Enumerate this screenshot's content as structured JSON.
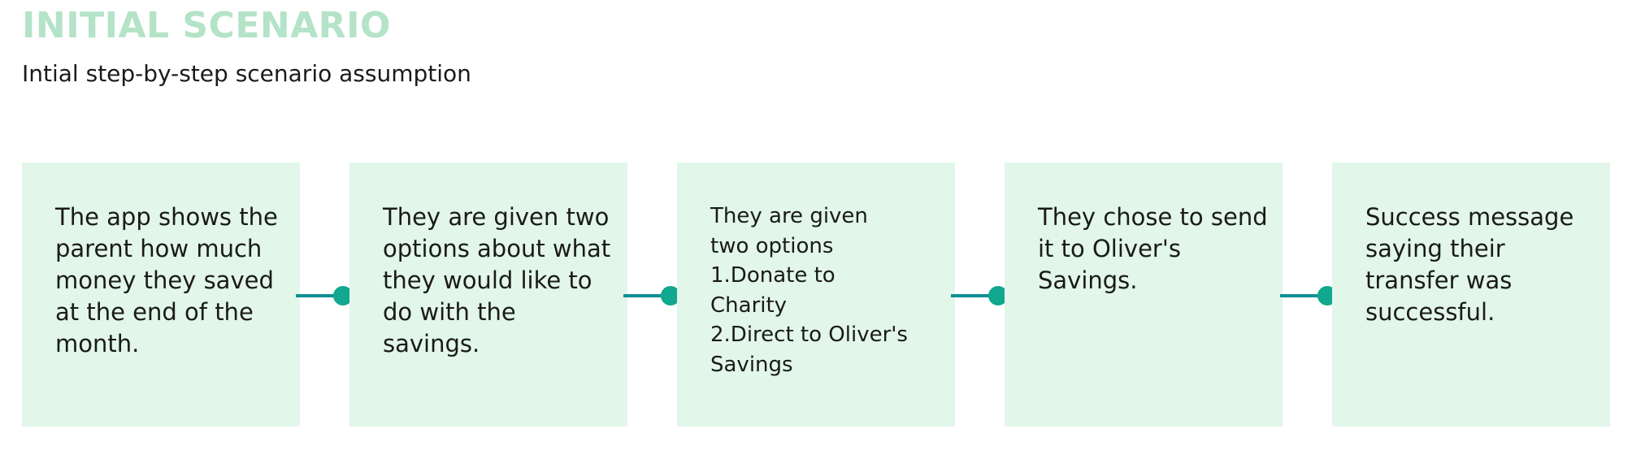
{
  "header": {
    "title": "INITIAL SCENARIO",
    "subtitle": "Intial step-by-step scenario assumption"
  },
  "steps": [
    {
      "text": "The app shows the parent how much money they saved at the end of the month."
    },
    {
      "text": "They are given two options about what they would like to do with the savings."
    },
    {
      "lines": [
        "They are given",
        "two options",
        "1.Donate to",
        "Charity",
        "2.Direct to Oliver's",
        "Savings"
      ]
    },
    {
      "text": "They chose to send it to Oliver's Savings."
    },
    {
      "text": "Success message saying their transfer was successful."
    }
  ],
  "colors": {
    "title": "#b4e3c7",
    "box_fill": "#e2f6ea",
    "connector_line": "#108f93",
    "connector_dot": "#12a78f"
  }
}
